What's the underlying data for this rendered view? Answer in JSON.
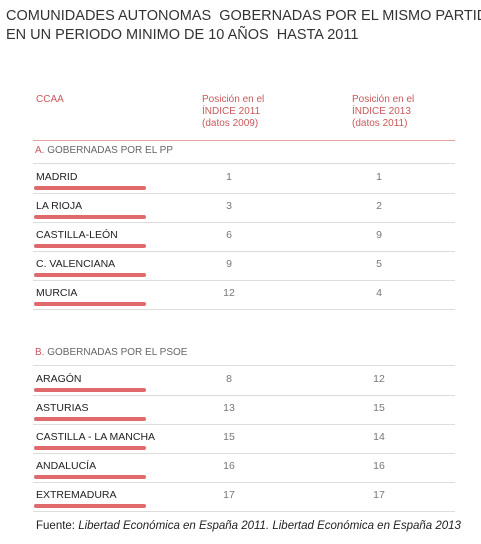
{
  "title": [
    "COMUNIDADES AUTONOMAS  GOBERNADAS POR EL MISMO PARTIDO",
    "EN UN PERIODO MINIMO DE 10 AÑOS  HASTA 2011"
  ],
  "table": {
    "header": [
      [
        "CCAA"
      ],
      [
        "Posición en el",
        "ÍNDICE 2011",
        "(datos 2009)"
      ],
      [
        "Posición en el",
        "ÍNDICE 2013",
        "(datos 2011)"
      ]
    ],
    "sections": [
      {
        "letter": "A.",
        "label": "GOBERNADAS POR EL PP",
        "rows": [
          [
            "MADRID",
            1,
            1
          ],
          [
            "LA RIOJA",
            3,
            2
          ],
          [
            "CASTILLA-LEÓN",
            6,
            9
          ],
          [
            "C. VALENCIANA",
            9,
            5
          ],
          [
            "MURCIA",
            12,
            4
          ]
        ]
      },
      {
        "letter": "B.",
        "label": "GOBERNADAS POR EL PSOE",
        "rows": [
          [
            "ARAGÓN",
            8,
            12
          ],
          [
            "ASTURIAS",
            13,
            15
          ],
          [
            "CASTILLA - LA MANCHA",
            15,
            14
          ],
          [
            "ANDALUCÍA",
            16,
            16
          ],
          [
            "EXTREMADURA",
            17,
            17
          ]
        ]
      }
    ]
  },
  "source": {
    "label": "Fuente:",
    "text": "Libertad Económica en España 2011. Libertad Económica en España 2013"
  }
}
